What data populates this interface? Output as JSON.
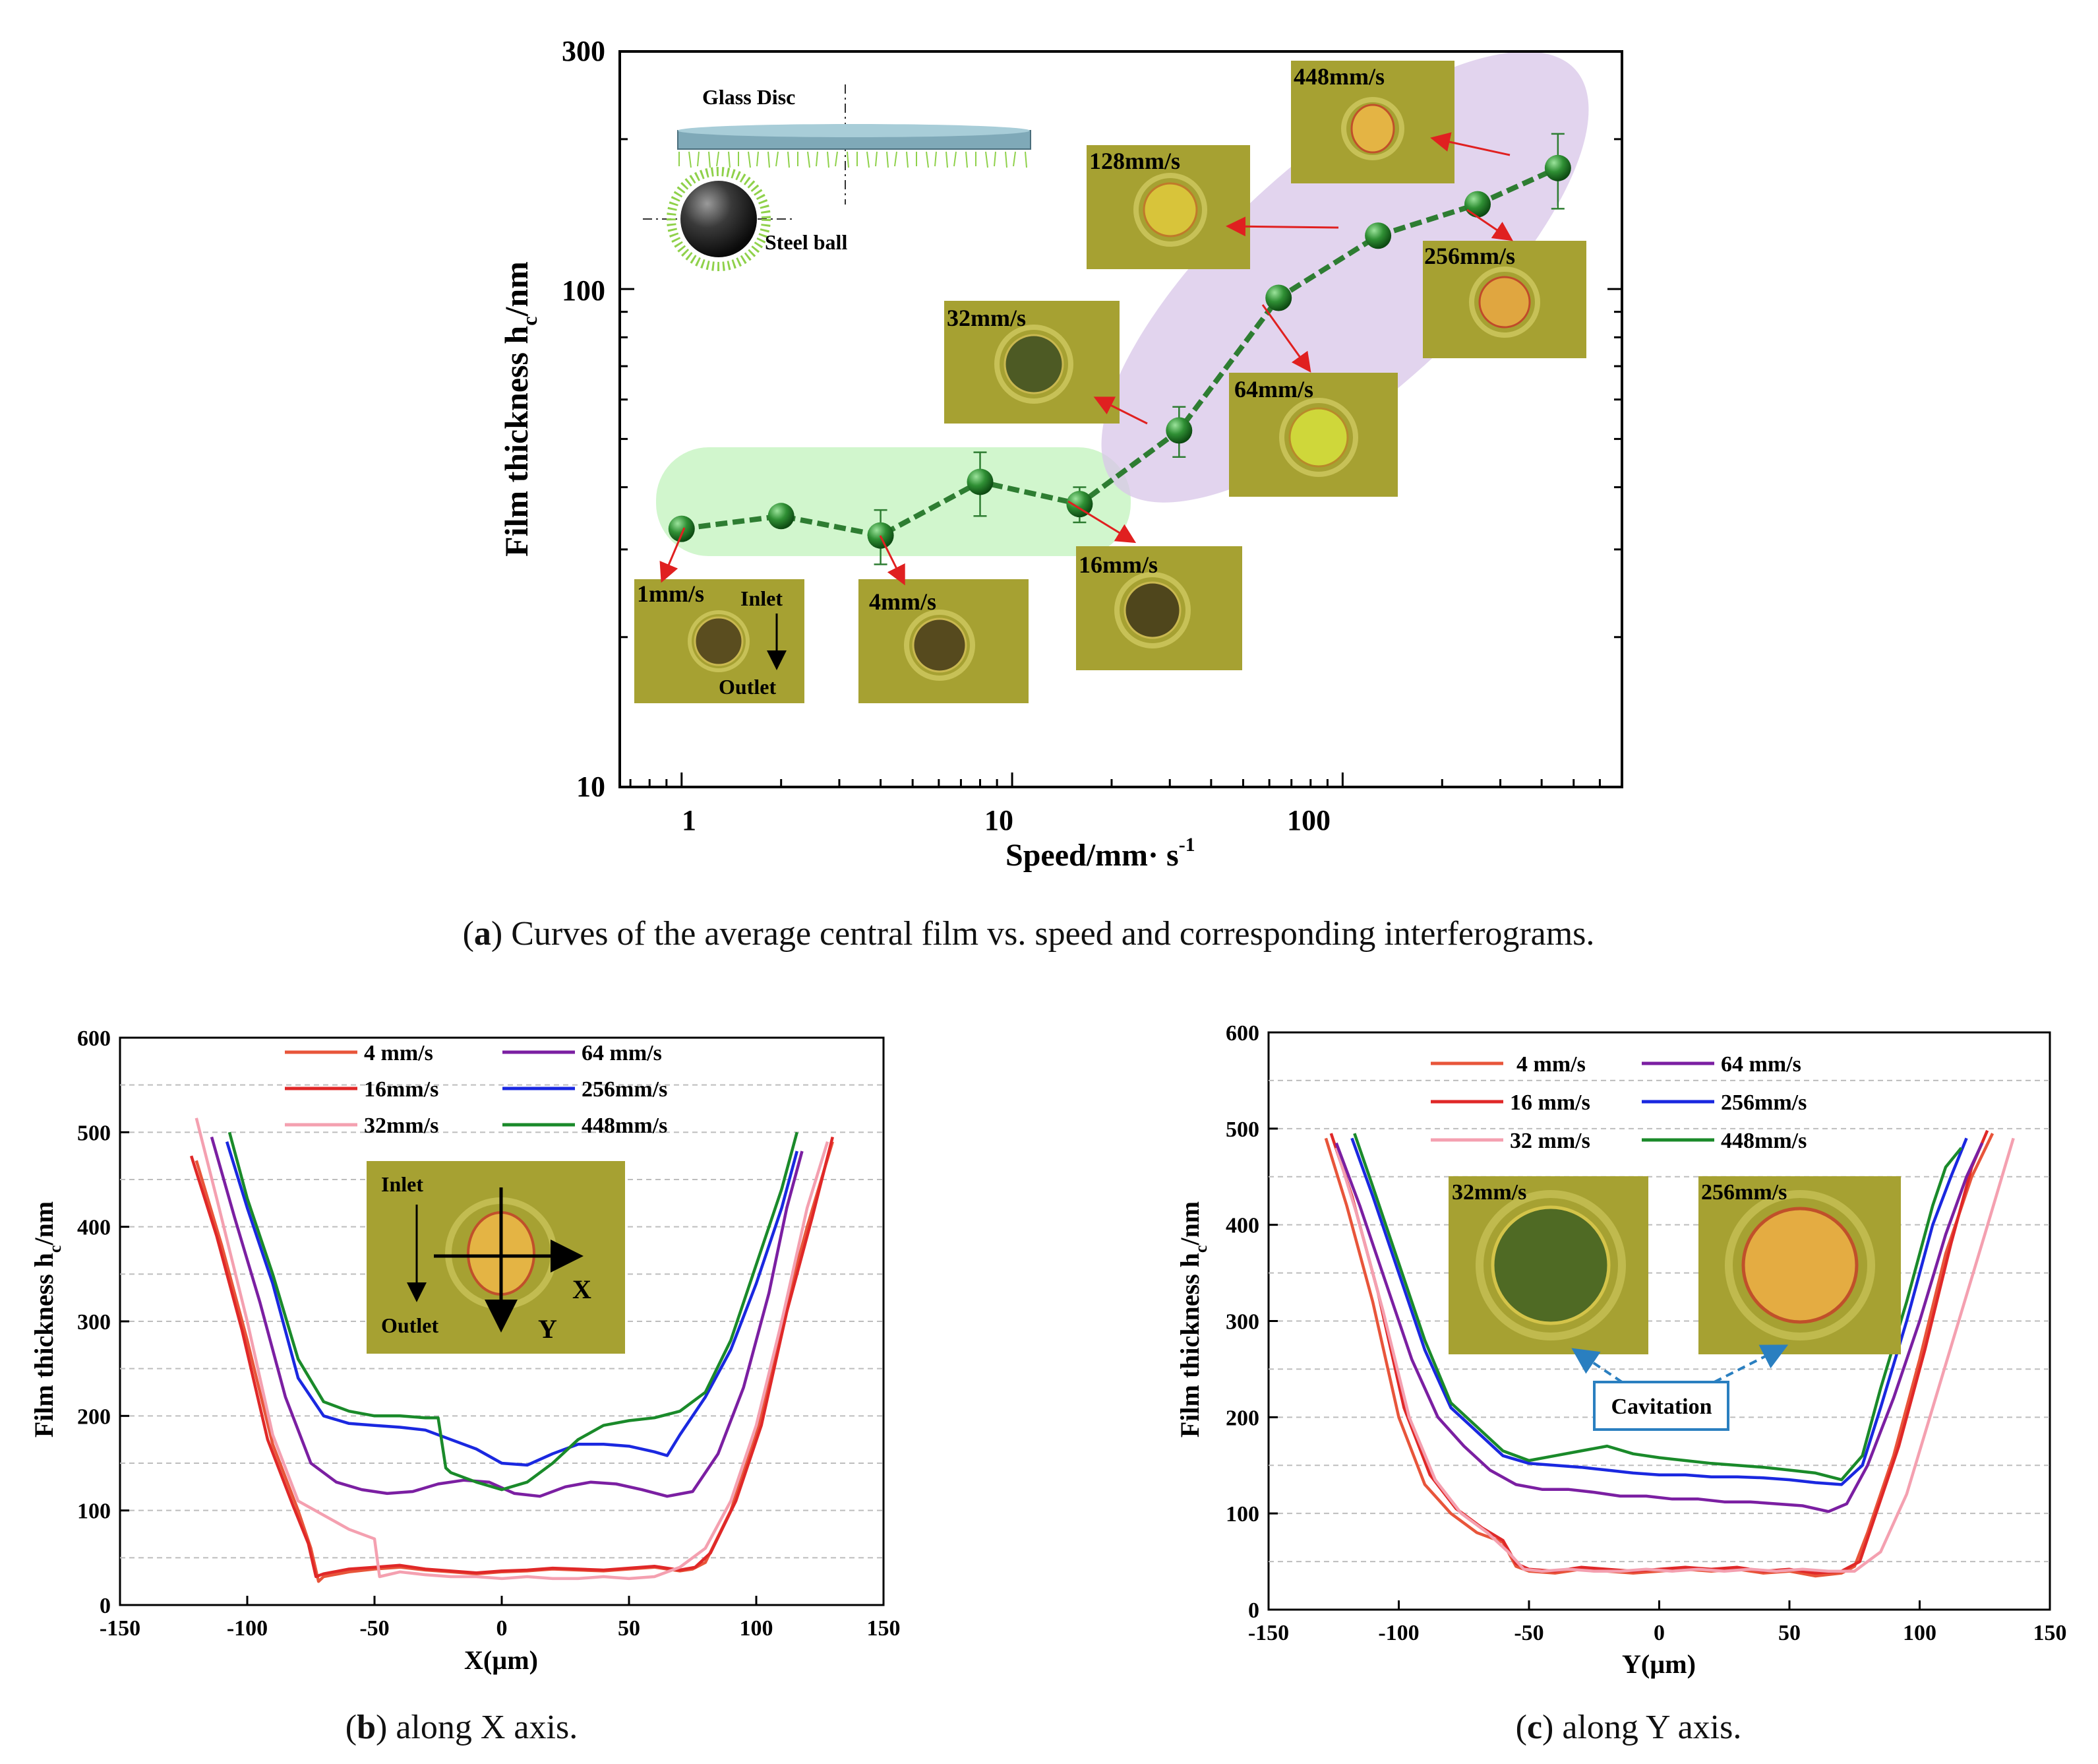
{
  "chart_data": [
    {
      "id": "a",
      "type": "line",
      "scale": "log-log",
      "title": "",
      "xlabel": "Speed/mm· s",
      "xlabel_sup": "-1",
      "ylabel": "Film thickness h",
      "ylabel_sub": "c",
      "ylabel_unit": "/nm",
      "xlim": [
        0.65,
        700
      ],
      "ylim": [
        10,
        300
      ],
      "xticks": [
        "1",
        "10",
        "100"
      ],
      "yticks": [
        "10",
        "100",
        "300"
      ],
      "series": [
        {
          "name": "average central film",
          "color": "#2e7d32",
          "x": [
            1,
            2,
            4,
            8,
            16,
            32,
            64,
            128,
            256,
            448
          ],
          "y": [
            33,
            35,
            32,
            41,
            37,
            52,
            96,
            128,
            148,
            175
          ],
          "err": [
            1.5,
            0.5,
            4,
            6,
            3,
            6,
            0,
            0,
            0,
            30
          ]
        }
      ],
      "annotations": {
        "interferograms": [
          "1mm/s",
          "4mm/s",
          "16mm/s",
          "32mm/s",
          "64mm/s",
          "128mm/s",
          "256mm/s",
          "448mm/s"
        ],
        "inlet": "Inlet",
        "outlet": "Outlet",
        "glass_disc": "Glass Disc",
        "steel_ball": "Steel ball"
      },
      "caption_letter": "a",
      "caption_text": ") Curves of the average central film vs. speed and corresponding interferograms."
    },
    {
      "id": "b",
      "type": "line",
      "xlabel": "X(µm)",
      "ylabel": "Film thickness h",
      "ylabel_sub": "c",
      "ylabel_unit": "/nm",
      "xlim": [
        -150,
        150
      ],
      "ylim": [
        0,
        600
      ],
      "xticks": [
        "-150",
        "-100",
        "-50",
        "0",
        "50",
        "100",
        "150"
      ],
      "yticks": [
        "0",
        "100",
        "200",
        "300",
        "400",
        "500",
        "600"
      ],
      "legend": [
        "4 mm/s",
        "64 mm/s",
        "16mm/s",
        "256mm/s",
        "32mm/s",
        "448mm/s"
      ],
      "series": [
        {
          "name": "4 mm/s",
          "color": "#e8553a",
          "x": [
            -120,
            -110,
            -100,
            -90,
            -80,
            -75,
            -72,
            -70,
            -60,
            -50,
            -40,
            -30,
            -20,
            -10,
            0,
            10,
            20,
            30,
            40,
            50,
            60,
            70,
            75,
            80,
            90,
            100,
            110,
            120,
            130
          ],
          "y": [
            470,
            380,
            280,
            170,
            100,
            60,
            25,
            30,
            35,
            38,
            40,
            37,
            35,
            33,
            35,
            36,
            38,
            37,
            36,
            38,
            40,
            36,
            38,
            45,
            100,
            180,
            300,
            400,
            490
          ]
        },
        {
          "name": "16mm/s",
          "color": "#e02828",
          "x": [
            -122,
            -112,
            -102,
            -92,
            -82,
            -76,
            -73,
            -70,
            -60,
            -50,
            -40,
            -30,
            -20,
            -10,
            0,
            10,
            20,
            30,
            40,
            50,
            60,
            70,
            76,
            82,
            92,
            102,
            112,
            122,
            130
          ],
          "y": [
            475,
            390,
            290,
            175,
            105,
            65,
            30,
            33,
            38,
            40,
            42,
            38,
            36,
            34,
            36,
            37,
            39,
            38,
            37,
            39,
            41,
            37,
            40,
            55,
            110,
            190,
            310,
            410,
            495
          ]
        },
        {
          "name": "32mm/s",
          "color": "#f4a0b0",
          "x": [
            -120,
            -112,
            -100,
            -90,
            -80,
            -70,
            -60,
            -50,
            -48,
            -40,
            -30,
            -20,
            -10,
            0,
            10,
            20,
            30,
            40,
            50,
            60,
            70,
            80,
            90,
            100,
            110,
            120,
            128
          ],
          "y": [
            515,
            430,
            300,
            180,
            110,
            95,
            80,
            70,
            30,
            35,
            32,
            30,
            30,
            28,
            30,
            28,
            28,
            30,
            28,
            30,
            40,
            60,
            110,
            190,
            300,
            420,
            490
          ]
        },
        {
          "name": "64 mm/s",
          "color": "#7b1fa2",
          "x": [
            -114,
            -105,
            -95,
            -85,
            -75,
            -65,
            -55,
            -45,
            -35,
            -25,
            -15,
            -5,
            5,
            15,
            25,
            35,
            45,
            55,
            65,
            75,
            85,
            95,
            105,
            112,
            118
          ],
          "y": [
            495,
            410,
            320,
            220,
            150,
            130,
            122,
            118,
            120,
            128,
            132,
            130,
            118,
            115,
            125,
            130,
            128,
            122,
            115,
            120,
            160,
            230,
            330,
            420,
            480
          ]
        },
        {
          "name": "256mm/s",
          "color": "#1a28e0",
          "x": [
            -108,
            -100,
            -90,
            -80,
            -70,
            -60,
            -50,
            -40,
            -30,
            -20,
            -10,
            0,
            10,
            20,
            30,
            40,
            50,
            60,
            65,
            70,
            80,
            90,
            100,
            110,
            116
          ],
          "y": [
            490,
            420,
            340,
            240,
            200,
            192,
            190,
            188,
            185,
            175,
            165,
            150,
            148,
            160,
            170,
            170,
            168,
            162,
            158,
            180,
            220,
            270,
            340,
            420,
            480
          ]
        },
        {
          "name": "448mm/s",
          "color": "#1a8a2a",
          "x": [
            -107,
            -100,
            -90,
            -80,
            -70,
            -60,
            -50,
            -40,
            -30,
            -25,
            -22,
            -20,
            -10,
            0,
            10,
            20,
            30,
            40,
            50,
            60,
            70,
            80,
            90,
            100,
            110,
            116
          ],
          "y": [
            500,
            430,
            350,
            260,
            215,
            205,
            200,
            200,
            198,
            198,
            145,
            140,
            130,
            122,
            130,
            150,
            175,
            190,
            195,
            198,
            205,
            225,
            280,
            360,
            440,
            500
          ]
        }
      ],
      "annotations": {
        "inlet": "Inlet",
        "outlet": "Outlet",
        "x_arrow": "X",
        "y_arrow": "Y"
      },
      "caption_letter": "b",
      "caption_text": ") along X axis."
    },
    {
      "id": "c",
      "type": "line",
      "xlabel": "Y(µm)",
      "ylabel": "Film thickness h",
      "ylabel_sub": "c",
      "ylabel_unit": "/nm",
      "xlim": [
        -150,
        150
      ],
      "ylim": [
        0,
        600
      ],
      "xticks": [
        "-150",
        "-100",
        "-50",
        "0",
        "50",
        "100",
        "150"
      ],
      "yticks": [
        "0",
        "100",
        "200",
        "300",
        "400",
        "500",
        "600"
      ],
      "legend": [
        "4 mm/s",
        "64 mm/s",
        "16 mm/s",
        "256mm/s",
        "32 mm/s",
        "448mm/s"
      ],
      "series": [
        {
          "name": "4 mm/s",
          "color": "#e8553a",
          "x": [
            -128,
            -120,
            -110,
            -100,
            -90,
            -80,
            -70,
            -60,
            -55,
            -50,
            -40,
            -30,
            -20,
            -10,
            0,
            10,
            20,
            30,
            40,
            50,
            60,
            70,
            75,
            80,
            90,
            100,
            110,
            120,
            128
          ],
          "y": [
            490,
            420,
            320,
            200,
            130,
            100,
            80,
            70,
            45,
            40,
            38,
            42,
            40,
            38,
            40,
            42,
            40,
            42,
            38,
            40,
            35,
            38,
            45,
            80,
            160,
            260,
            370,
            450,
            495
          ]
        },
        {
          "name": "16 mm/s",
          "color": "#e02828",
          "x": [
            -126,
            -118,
            -108,
            -98,
            -88,
            -78,
            -68,
            -60,
            -55,
            -50,
            -40,
            -30,
            -20,
            -10,
            0,
            10,
            20,
            30,
            40,
            50,
            60,
            70,
            77,
            82,
            92,
            102,
            112,
            120,
            126
          ],
          "y": [
            495,
            430,
            330,
            210,
            140,
            105,
            85,
            72,
            48,
            42,
            40,
            44,
            42,
            40,
            42,
            44,
            42,
            44,
            40,
            42,
            38,
            40,
            50,
            90,
            170,
            270,
            380,
            460,
            498
          ]
        },
        {
          "name": "32 mm/s",
          "color": "#f4a0b0",
          "x": [
            -124,
            -116,
            -106,
            -96,
            -86,
            -76,
            -66,
            -58,
            -52,
            -45,
            -35,
            -25,
            -15,
            -5,
            5,
            15,
            25,
            35,
            45,
            55,
            65,
            75,
            85,
            95,
            105,
            115,
            125,
            136
          ],
          "y": [
            480,
            410,
            310,
            200,
            135,
            100,
            80,
            60,
            42,
            40,
            42,
            40,
            40,
            42,
            40,
            42,
            40,
            42,
            40,
            42,
            40,
            40,
            60,
            120,
            210,
            300,
            390,
            490
          ]
        },
        {
          "name": "64 mm/s",
          "color": "#7b1fa2",
          "x": [
            -124,
            -115,
            -105,
            -95,
            -85,
            -75,
            -65,
            -55,
            -45,
            -35,
            -25,
            -15,
            -5,
            5,
            15,
            25,
            35,
            45,
            55,
            65,
            72,
            80,
            90,
            100,
            110,
            118,
            124
          ],
          "y": [
            485,
            420,
            340,
            260,
            200,
            170,
            145,
            130,
            125,
            125,
            122,
            118,
            118,
            115,
            115,
            112,
            112,
            110,
            108,
            102,
            110,
            150,
            220,
            300,
            390,
            450,
            485
          ]
        },
        {
          "name": "256mm/s",
          "color": "#1a28e0",
          "x": [
            -118,
            -110,
            -100,
            -90,
            -80,
            -70,
            -60,
            -50,
            -40,
            -30,
            -20,
            -10,
            0,
            10,
            20,
            30,
            40,
            50,
            60,
            70,
            78,
            85,
            95,
            105,
            112,
            118
          ],
          "y": [
            490,
            430,
            350,
            270,
            210,
            185,
            160,
            152,
            150,
            148,
            145,
            142,
            140,
            140,
            138,
            138,
            137,
            135,
            132,
            130,
            150,
            210,
            300,
            400,
            450,
            490
          ]
        },
        {
          "name": "448mm/s",
          "color": "#1a8a2a",
          "x": [
            -117,
            -110,
            -100,
            -90,
            -80,
            -70,
            -60,
            -50,
            -40,
            -30,
            -20,
            -10,
            0,
            10,
            20,
            30,
            40,
            50,
            60,
            70,
            78,
            85,
            95,
            105,
            110,
            116
          ],
          "y": [
            495,
            440,
            360,
            280,
            215,
            190,
            165,
            155,
            160,
            165,
            170,
            162,
            158,
            155,
            152,
            150,
            148,
            145,
            142,
            135,
            160,
            230,
            320,
            420,
            460,
            480
          ]
        }
      ],
      "annotations": {
        "left_image": "32mm/s",
        "right_image": "256mm/s",
        "cavitation": "Cavitation"
      },
      "caption_letter": "c",
      "caption_text": ") along Y axis."
    }
  ]
}
